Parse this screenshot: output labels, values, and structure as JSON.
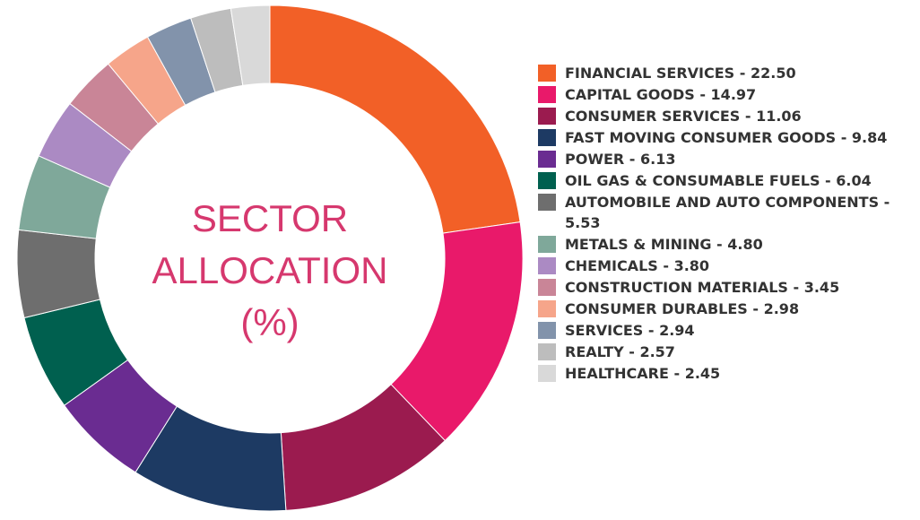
{
  "chart_data": {
    "type": "donut",
    "title": "SECTOR ALLOCATION (%)",
    "categories": [
      "FINANCIAL SERVICES - 22.50",
      "CAPITAL GOODS - 14.97",
      "CONSUMER SERVICES - 11.06",
      "FAST MOVING CONSUMER GOODS - 9.84",
      "POWER - 6.13",
      "OIL GAS & CONSUMABLE FUELS - 6.04",
      "AUTOMOBILE AND AUTO COMPONENTS - 5.53",
      "METALS & MINING - 4.80",
      "CHEMICALS - 3.80",
      "CONSTRUCTION MATERIALS - 3.45",
      "CONSUMER DURABLES - 2.98",
      "SERVICES - 2.94",
      "REALTY - 2.57",
      "HEALTHCARE - 2.45"
    ],
    "values": [
      22.5,
      14.97,
      11.06,
      9.84,
      6.13,
      6.04,
      5.53,
      4.8,
      3.8,
      3.45,
      2.98,
      2.94,
      2.57,
      2.45
    ],
    "colors": [
      "#f26027",
      "#e9196a",
      "#9b1b4f",
      "#1d3a63",
      "#6a2c91",
      "#00604f",
      "#6e6e6e",
      "#7fa89a",
      "#ab8ac3",
      "#c98597",
      "#f6a58a",
      "#8293ab",
      "#bdbdbd",
      "#d9d9d9"
    ],
    "legend": "right"
  }
}
